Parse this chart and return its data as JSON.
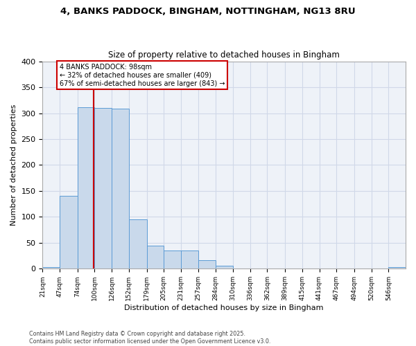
{
  "title_line1": "4, BANKS PADDOCK, BINGHAM, NOTTINGHAM, NG13 8RU",
  "title_line2": "Size of property relative to detached houses in Bingham",
  "xlabel": "Distribution of detached houses by size in Bingham",
  "ylabel": "Number of detached properties",
  "footnote1": "Contains HM Land Registry data © Crown copyright and database right 2025.",
  "footnote2": "Contains public sector information licensed under the Open Government Licence v3.0.",
  "bin_labels": [
    "21sqm",
    "47sqm",
    "74sqm",
    "100sqm",
    "126sqm",
    "152sqm",
    "179sqm",
    "205sqm",
    "231sqm",
    "257sqm",
    "284sqm",
    "310sqm",
    "336sqm",
    "362sqm",
    "389sqm",
    "415sqm",
    "441sqm",
    "467sqm",
    "494sqm",
    "520sqm",
    "546sqm"
  ],
  "bar_values": [
    3,
    140,
    312,
    310,
    309,
    95,
    45,
    35,
    35,
    17,
    6,
    0,
    0,
    0,
    0,
    0,
    0,
    0,
    0,
    0,
    3
  ],
  "bar_color": "#c9d9eb",
  "bar_edge_color": "#5b9bd5",
  "grid_color": "#d0d8e8",
  "vline_x_index": 2.85,
  "vline_color": "#cc0000",
  "annotation_text": "4 BANKS PADDOCK: 98sqm\n← 32% of detached houses are smaller (409)\n67% of semi-detached houses are larger (843) →",
  "annotation_box_color": "#ffffff",
  "annotation_box_edge": "#cc0000",
  "ylim": [
    0,
    400
  ],
  "yticks": [
    0,
    50,
    100,
    150,
    200,
    250,
    300,
    350,
    400
  ],
  "bin_edges": [
    21,
    47,
    74,
    100,
    126,
    152,
    179,
    205,
    231,
    257,
    284,
    310,
    336,
    362,
    389,
    415,
    441,
    467,
    494,
    520,
    546,
    572
  ]
}
